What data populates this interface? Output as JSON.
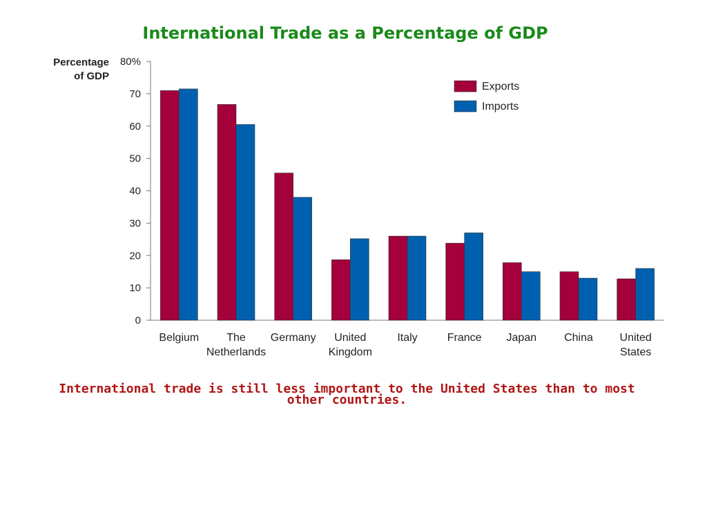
{
  "slide": {
    "title": "International Trade as a Percentage of GDP",
    "caption": "International trade is still less important to the United States than to most other countries."
  },
  "chart_data": {
    "type": "bar",
    "title": "",
    "ylabel": "Percentage of GDP",
    "ylabel_lines": [
      "Percentage",
      "of GDP"
    ],
    "xlabel": "",
    "ylim": [
      0,
      80
    ],
    "yticks": [
      0,
      10,
      20,
      30,
      40,
      50,
      60,
      70,
      80
    ],
    "ytick_labels": [
      "0",
      "10",
      "20",
      "30",
      "40",
      "50",
      "60",
      "70",
      "80%"
    ],
    "categories": [
      "Belgium",
      "The Netherlands",
      "Germany",
      "United Kingdom",
      "Italy",
      "France",
      "Japan",
      "China",
      "United States"
    ],
    "category_lines": [
      [
        "Belgium"
      ],
      [
        "The",
        "Netherlands"
      ],
      [
        "Germany"
      ],
      [
        "United",
        "Kingdom"
      ],
      [
        "Italy"
      ],
      [
        "France"
      ],
      [
        "Japan"
      ],
      [
        "China"
      ],
      [
        "United",
        "States"
      ]
    ],
    "series": [
      {
        "name": "Exports",
        "color": "#a3003c",
        "values": [
          71,
          66.7,
          45.5,
          18.7,
          26,
          23.8,
          17.8,
          15,
          12.8
        ]
      },
      {
        "name": "Imports",
        "color": "#0060b0",
        "values": [
          71.5,
          60.5,
          38,
          25.2,
          26,
          27,
          15,
          13,
          16
        ]
      }
    ],
    "legend_position": "top-right",
    "grid": false
  }
}
